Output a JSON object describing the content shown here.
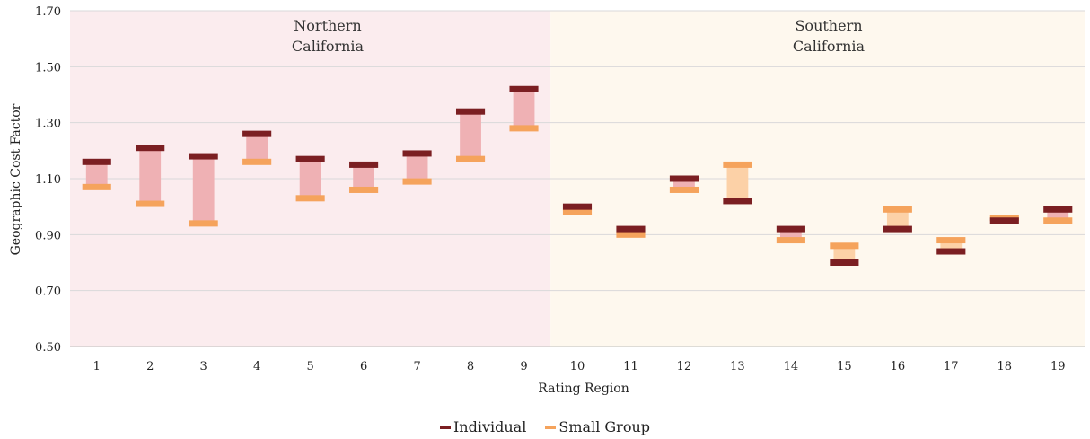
{
  "chart_data": {
    "type": "floating-bar",
    "ylabel": "Geographic Cost Factor",
    "xlabel": "Rating Region",
    "ylim": [
      0.5,
      1.7
    ],
    "yticks": [
      "0.50",
      "0.70",
      "0.90",
      "1.10",
      "1.30",
      "1.50",
      "1.70"
    ],
    "grid": true,
    "legend_position": "bottom",
    "regions": [
      {
        "label_line1": "Northern",
        "label_line2": "California",
        "from": "1",
        "to": "9"
      },
      {
        "label_line1": "Southern",
        "label_line2": "California",
        "from": "10",
        "to": "19"
      }
    ],
    "categories": [
      "1",
      "2",
      "3",
      "4",
      "5",
      "6",
      "7",
      "8",
      "9",
      "10",
      "11",
      "12",
      "13",
      "14",
      "15",
      "16",
      "17",
      "18",
      "19"
    ],
    "series": [
      {
        "name": "Individual",
        "values": [
          1.16,
          1.21,
          1.18,
          1.26,
          1.17,
          1.15,
          1.19,
          1.34,
          1.42,
          1.0,
          0.92,
          1.1,
          1.02,
          0.92,
          0.8,
          0.92,
          0.84,
          0.95,
          0.99
        ]
      },
      {
        "name": "Small Group",
        "values": [
          1.07,
          1.01,
          0.94,
          1.16,
          1.03,
          1.06,
          1.09,
          1.17,
          1.28,
          0.98,
          0.9,
          1.06,
          1.15,
          0.88,
          0.86,
          0.99,
          0.88,
          0.96,
          0.95
        ]
      }
    ],
    "colors": {
      "individual": "#7b1f22",
      "small_group": "#f5a35c",
      "north_bg": "#fbecee",
      "south_bg": "#fef8ee",
      "north_bar": "#efb1b4",
      "south_bar": "#fcd1a7",
      "grid": "#d9d9d9"
    }
  }
}
